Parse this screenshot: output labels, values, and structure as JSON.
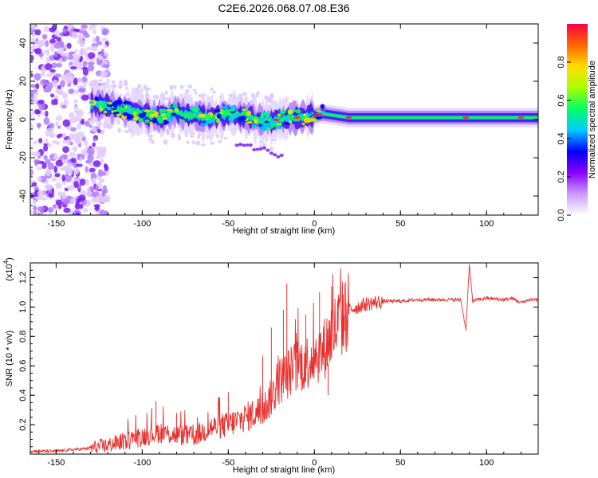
{
  "title": "C2E6.2026.068.07.08.E36",
  "chart_data": [
    {
      "type": "heatmap",
      "name": "spectrogram",
      "xlabel": "Height of straight line (km)",
      "ylabel": "Frequency (Hz)",
      "xlim": [
        -165,
        130
      ],
      "ylim": [
        -50,
        50
      ],
      "xticks": [
        -150,
        -100,
        -50,
        0,
        50,
        100
      ],
      "yticks": [
        -40,
        -20,
        0,
        20,
        40
      ],
      "description_series": {
        "noise_region_km": [
          -165,
          -125
        ],
        "signal_onset_km": -130,
        "ridge": {
          "x": [
            -130,
            -120,
            -110,
            -100,
            -90,
            -80,
            -70,
            -60,
            -50,
            -40,
            -30,
            -20,
            -10,
            0,
            5,
            20,
            50,
            90,
            120,
            130
          ],
          "y": [
            8,
            7,
            5,
            3,
            1,
            4,
            2,
            1,
            3,
            2,
            -1,
            0,
            1,
            2,
            3,
            1,
            1,
            1,
            1,
            1
          ]
        },
        "ridge_peak_amplitude": 0.95
      },
      "colorbar": {
        "label": "Normalized spectral amplitude",
        "range": [
          0,
          1
        ],
        "ticks": [
          "0.0",
          "0.2",
          "0.4",
          "0.6",
          "0.8"
        ],
        "colors": [
          "#ffffff",
          "#cc99ff",
          "#8800ff",
          "#0000ff",
          "#00ccff",
          "#00ff66",
          "#aaff00",
          "#ffdd00",
          "#ff6600",
          "#ff0044"
        ]
      }
    },
    {
      "type": "line",
      "name": "snr",
      "xlabel": "Height of straight line (km)",
      "ylabel": "SNR (10 * v/v)",
      "scale_label": "(x10",
      "scale_exponent": "4",
      "xlim": [
        -165,
        130
      ],
      "ylim": [
        0,
        1.3
      ],
      "xticks": [
        -150,
        -100,
        -50,
        0,
        50,
        100
      ],
      "yticks": [
        "0.2",
        "0.4",
        "0.6",
        "0.8",
        "1.0",
        "1.2"
      ],
      "color": "#e8312f",
      "series": {
        "x": [
          -165,
          -150,
          -140,
          -130,
          -120,
          -110,
          -100,
          -90,
          -80,
          -70,
          -60,
          -50,
          -40,
          -30,
          -25,
          -20,
          -15,
          -10,
          -5,
          0,
          5,
          10,
          15,
          20,
          25,
          30,
          40,
          50,
          60,
          70,
          80,
          85,
          88,
          90,
          92,
          95,
          100,
          110,
          115,
          118,
          120,
          125,
          130
        ],
        "y": [
          0.02,
          0.02,
          0.03,
          0.04,
          0.06,
          0.09,
          0.12,
          0.15,
          0.13,
          0.12,
          0.18,
          0.2,
          0.25,
          0.3,
          0.38,
          0.5,
          0.55,
          0.6,
          0.62,
          0.68,
          0.7,
          0.82,
          0.9,
          0.98,
          1.0,
          1.02,
          1.04,
          1.04,
          1.05,
          1.05,
          1.05,
          1.05,
          0.85,
          1.28,
          1.04,
          1.05,
          1.06,
          1.05,
          1.06,
          1.04,
          1.03,
          1.05,
          1.05
        ]
      },
      "spikes": {
        "x": [
          -92,
          -80,
          -50,
          -30,
          -25,
          -18,
          -16,
          -5,
          3,
          8,
          10
        ],
        "y": [
          0.36,
          0.28,
          0.42,
          0.67,
          0.86,
          0.98,
          1.16,
          0.95,
          1.1,
          0.4,
          1.14
        ]
      }
    }
  ]
}
